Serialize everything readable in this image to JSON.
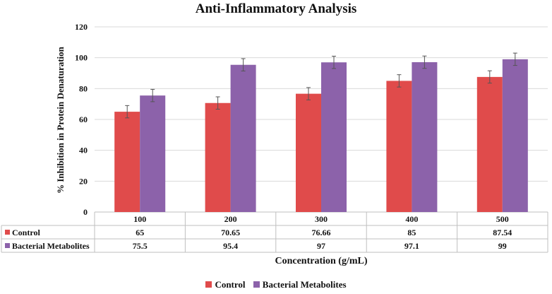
{
  "chart_data": {
    "type": "bar",
    "title": "Anti-Inflammatory Analysis",
    "xlabel": "Concentration (g/mL)",
    "ylabel": "% Inhibition  in Protein Denaturation",
    "ylim": [
      0,
      120
    ],
    "yticks": [
      0,
      20,
      40,
      60,
      80,
      100,
      120
    ],
    "categories": [
      "100",
      "200",
      "300",
      "400",
      "500"
    ],
    "series": [
      {
        "name": "Control",
        "color": "#e04b4b",
        "values": [
          65,
          70.65,
          76.66,
          85,
          87.54
        ],
        "labels": [
          "65",
          "70.65",
          "76.66",
          "85",
          "87.54"
        ],
        "error": [
          4,
          4,
          4,
          4,
          4
        ]
      },
      {
        "name": "Bacterial Metabolites",
        "color": "#8c62aa",
        "values": [
          75.5,
          95.4,
          97,
          97.1,
          99
        ],
        "labels": [
          "75.5",
          "95.4",
          "97",
          "97.1",
          "99"
        ],
        "error": [
          4,
          4,
          4,
          4,
          4
        ]
      }
    ],
    "gridlines": true,
    "data_table": true,
    "legend_position": "bottom"
  }
}
